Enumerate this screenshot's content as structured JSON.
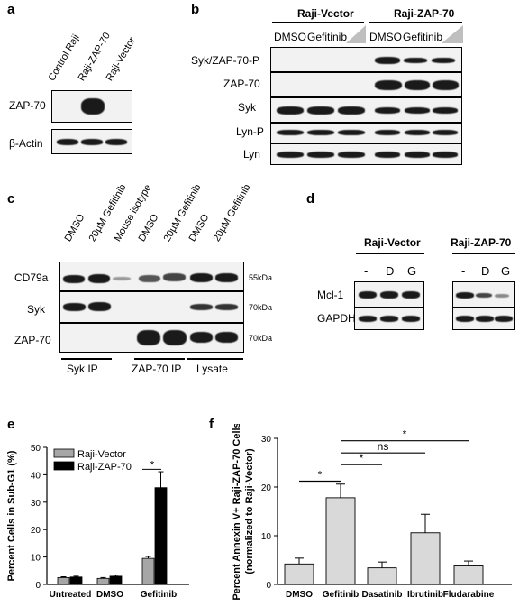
{
  "panels": {
    "a": {
      "letter": "a",
      "lanes": [
        "Control Raji",
        "Raji-ZAP-70",
        "Raji-Vector"
      ],
      "rows": [
        "ZAP-70",
        "β-Actin"
      ]
    },
    "b": {
      "letter": "b",
      "groups": [
        "Raji-Vector",
        "Raji-ZAP-70"
      ],
      "lane_labels": [
        "DMSO",
        "Gefitinib",
        "DMSO",
        "Gefitinib"
      ],
      "rows": [
        "Syk/ZAP-70-P",
        "ZAP-70",
        "Syk",
        "Lyn-P",
        "Lyn"
      ]
    },
    "c": {
      "letter": "c",
      "lanes": [
        "DMSO",
        "20µM Gefitinib",
        "Mouse isotype",
        "DMSO",
        "20µM Gefitinib",
        "DMSO",
        "20µM Gefitinib"
      ],
      "rows": [
        "CD79a",
        "Syk",
        "ZAP-70"
      ],
      "markers": [
        "55kDa",
        "70kDa",
        "70kDa"
      ],
      "groups": [
        "Syk IP",
        "ZAP-70 IP",
        "Lysate"
      ]
    },
    "d": {
      "letter": "d",
      "groups": [
        "Raji-Vector",
        "Raji-ZAP-70"
      ],
      "lanes": [
        "-",
        "D",
        "G",
        "-",
        "D",
        "G"
      ],
      "rows": [
        "Mcl-1",
        "GAPDH"
      ]
    }
  },
  "chart_data": [
    {
      "panel": "e",
      "type": "bar",
      "ylabel": "Percent Cells in Sub-G1 (%)",
      "ylim": [
        0,
        50
      ],
      "yticks": [
        "0",
        "10",
        "20",
        "30",
        "40",
        "50"
      ],
      "categories": [
        "Untreated",
        "DMSO",
        "Gefitinib"
      ],
      "series": [
        {
          "name": "Raji-Vector",
          "values": [
            2.5,
            2.2,
            9.5
          ],
          "errors": [
            0.3,
            0.3,
            0.7
          ],
          "color": "#a6a6a6"
        },
        {
          "name": "Raji-ZAP-70",
          "values": [
            2.7,
            3.0,
            35.3
          ],
          "errors": [
            0.3,
            0.4,
            5.8
          ],
          "color": "#000000"
        }
      ],
      "annotations": [
        "*"
      ],
      "legend": "top-left"
    },
    {
      "panel": "f",
      "type": "bar",
      "ylabel": "Percent Annexin V+ Raji-ZAP-70 Cells (normalized to Raji-Vector)",
      "ylim": [
        0,
        30
      ],
      "yticks": [
        "0",
        "10",
        "20",
        "30"
      ],
      "categories": [
        "DMSO",
        "Gefitinib",
        "Dasatinib",
        "Ibrutinib",
        "Fludarabine"
      ],
      "values": [
        4.2,
        17.8,
        3.4,
        10.6,
        3.8
      ],
      "errors": [
        1.2,
        2.8,
        1.2,
        3.8,
        1.0
      ],
      "color": "#d9d9d9",
      "annotations": [
        "*",
        "*",
        "ns",
        "*"
      ]
    }
  ]
}
